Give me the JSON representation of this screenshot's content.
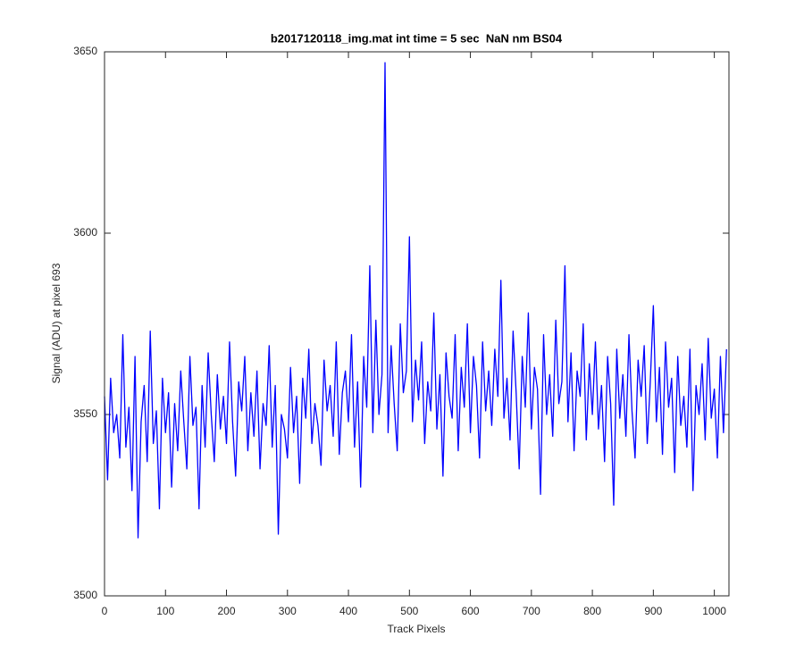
{
  "chart_data": {
    "type": "line",
    "title": "b2017120118_img.mat int time = 5 sec  NaN nm BS04",
    "xlabel": "Track Pixels",
    "ylabel": "Signal (ADU) at pixel 693",
    "xlim": [
      0,
      1024
    ],
    "ylim": [
      3500,
      3650
    ],
    "xticks": [
      0,
      100,
      200,
      300,
      400,
      500,
      600,
      700,
      800,
      900,
      1000
    ],
    "yticks": [
      3500,
      3550,
      3600,
      3650
    ],
    "series": [
      {
        "color": "#0000ff",
        "x": [
          0,
          5,
          10,
          15,
          20,
          25,
          30,
          35,
          40,
          45,
          50,
          55,
          60,
          65,
          70,
          75,
          80,
          85,
          90,
          95,
          100,
          105,
          110,
          115,
          120,
          125,
          130,
          135,
          140,
          145,
          150,
          155,
          160,
          165,
          170,
          175,
          180,
          185,
          190,
          195,
          200,
          205,
          210,
          215,
          220,
          225,
          230,
          235,
          240,
          245,
          250,
          255,
          260,
          265,
          270,
          275,
          280,
          285,
          290,
          295,
          300,
          305,
          310,
          315,
          320,
          325,
          330,
          335,
          340,
          345,
          350,
          355,
          360,
          365,
          370,
          375,
          380,
          385,
          390,
          395,
          400,
          405,
          410,
          415,
          420,
          425,
          430,
          435,
          440,
          445,
          450,
          455,
          460,
          465,
          470,
          475,
          480,
          485,
          490,
          495,
          500,
          505,
          510,
          515,
          520,
          525,
          530,
          535,
          540,
          545,
          550,
          555,
          560,
          565,
          570,
          575,
          580,
          585,
          590,
          595,
          600,
          605,
          610,
          615,
          620,
          625,
          630,
          635,
          640,
          645,
          650,
          655,
          660,
          665,
          670,
          675,
          680,
          685,
          690,
          695,
          700,
          705,
          710,
          715,
          720,
          725,
          730,
          735,
          740,
          745,
          750,
          755,
          760,
          765,
          770,
          775,
          780,
          785,
          790,
          795,
          800,
          805,
          810,
          815,
          820,
          825,
          830,
          835,
          840,
          845,
          850,
          855,
          860,
          865,
          870,
          875,
          880,
          885,
          890,
          895,
          900,
          905,
          910,
          915,
          920,
          925,
          930,
          935,
          940,
          945,
          950,
          955,
          960,
          965,
          970,
          975,
          980,
          985,
          990,
          995,
          1000,
          1005,
          1010,
          1015,
          1020
        ],
        "values": [
          3555,
          3532,
          3560,
          3545,
          3550,
          3538,
          3572,
          3541,
          3552,
          3529,
          3566,
          3516,
          3548,
          3558,
          3537,
          3573,
          3542,
          3551,
          3524,
          3560,
          3545,
          3556,
          3530,
          3553,
          3540,
          3562,
          3548,
          3535,
          3566,
          3547,
          3552,
          3524,
          3558,
          3541,
          3567,
          3550,
          3537,
          3561,
          3546,
          3555,
          3542,
          3570,
          3548,
          3533,
          3559,
          3551,
          3566,
          3540,
          3556,
          3544,
          3562,
          3535,
          3553,
          3547,
          3569,
          3541,
          3558,
          3517,
          3550,
          3546,
          3538,
          3563,
          3545,
          3555,
          3531,
          3560,
          3549,
          3568,
          3542,
          3553,
          3547,
          3536,
          3565,
          3551,
          3558,
          3544,
          3570,
          3539,
          3556,
          3562,
          3548,
          3572,
          3541,
          3559,
          3530,
          3566,
          3552,
          3591,
          3545,
          3576,
          3550,
          3561,
          3647,
          3545,
          3569,
          3553,
          3540,
          3575,
          3556,
          3562,
          3599,
          3548,
          3565,
          3554,
          3570,
          3542,
          3559,
          3551,
          3578,
          3546,
          3561,
          3533,
          3567,
          3555,
          3549,
          3572,
          3540,
          3563,
          3552,
          3575,
          3545,
          3566,
          3558,
          3538,
          3570,
          3551,
          3562,
          3547,
          3568,
          3555,
          3587,
          3549,
          3560,
          3543,
          3573,
          3556,
          3535,
          3566,
          3552,
          3578,
          3546,
          3563,
          3557,
          3528,
          3572,
          3550,
          3561,
          3544,
          3576,
          3553,
          3559,
          3591,
          3548,
          3567,
          3540,
          3562,
          3555,
          3575,
          3543,
          3564,
          3550,
          3570,
          3546,
          3558,
          3537,
          3566,
          3553,
          3525,
          3568,
          3549,
          3561,
          3544,
          3572,
          3551,
          3538,
          3565,
          3555,
          3569,
          3542,
          3559,
          3580,
          3548,
          3563,
          3539,
          3570,
          3552,
          3560,
          3534,
          3566,
          3547,
          3555,
          3541,
          3568,
          3529,
          3558,
          3550,
          3564,
          3543,
          3571,
          3549,
          3557,
          3538,
          3566,
          3545,
          3568
        ]
      }
    ]
  }
}
